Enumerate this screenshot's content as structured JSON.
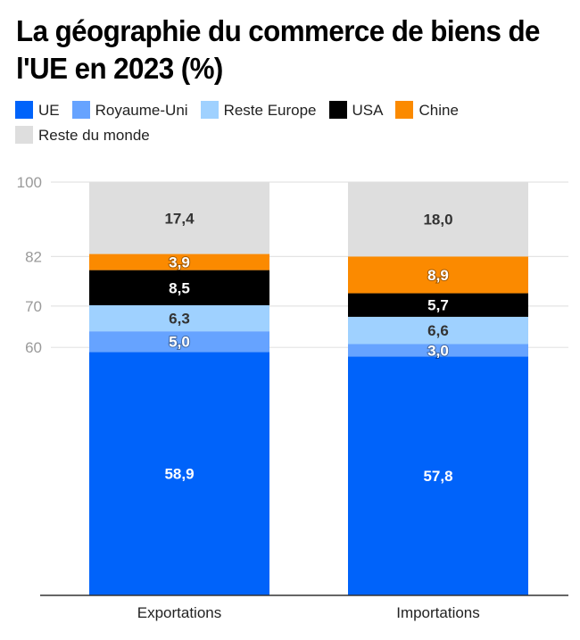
{
  "title": "La géographie du commerce de biens de l'UE en 2023 (%)",
  "legend": [
    {
      "label": "UE",
      "color": "#0063fa"
    },
    {
      "label": "Royaume-Uni",
      "color": "#66a3ff"
    },
    {
      "label": "Reste Europe",
      "color": "#9fd1ff"
    },
    {
      "label": "USA",
      "color": "#000000"
    },
    {
      "label": "Chine",
      "color": "#fb8a00"
    },
    {
      "label": "Reste du monde",
      "color": "#dedede"
    }
  ],
  "chart_data": {
    "type": "bar",
    "stacked": true,
    "title": "La géographie du commerce de biens de l'UE en 2023 (%)",
    "xlabel": "",
    "ylabel": "",
    "categories": [
      "Exportations",
      "Importations"
    ],
    "series": [
      {
        "name": "UE",
        "color": "#0063fa",
        "label_color": "#ffffff",
        "values": [
          58.9,
          57.8
        ],
        "labels": [
          "58,9",
          "57,8"
        ]
      },
      {
        "name": "Royaume-Uni",
        "color": "#66a3ff",
        "label_color": "#ffffff",
        "values": [
          5.0,
          3.0
        ],
        "labels": [
          "5,0",
          "3,0"
        ]
      },
      {
        "name": "Reste Europe",
        "color": "#9fd1ff",
        "label_color": "#333333",
        "values": [
          6.3,
          6.6
        ],
        "labels": [
          "6,3",
          "6,6"
        ]
      },
      {
        "name": "USA",
        "color": "#000000",
        "label_color": "#ffffff",
        "values": [
          8.5,
          5.7
        ],
        "labels": [
          "8,5",
          "5,7"
        ]
      },
      {
        "name": "Chine",
        "color": "#fb8a00",
        "label_color": "#ffffff",
        "values": [
          3.9,
          8.9
        ],
        "labels": [
          "3,9",
          "8,9"
        ]
      },
      {
        "name": "Reste du monde",
        "color": "#dedede",
        "label_color": "#333333",
        "values": [
          17.4,
          18.0
        ],
        "labels": [
          "17,4",
          "18,0"
        ]
      }
    ],
    "yticks": [
      60,
      70,
      82,
      100
    ],
    "ylim": [
      0,
      100
    ],
    "grid": true,
    "legend_position": "top-left"
  }
}
